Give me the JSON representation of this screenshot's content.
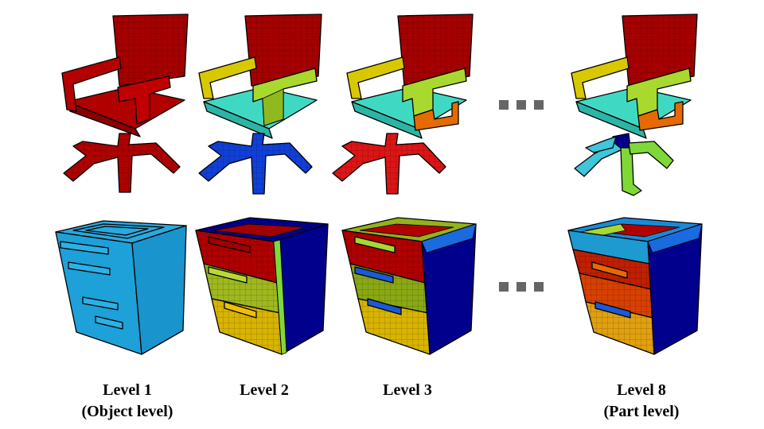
{
  "columns": [
    {
      "level": "Level 1",
      "sublabel": "(Object level)"
    },
    {
      "level": "Level 2",
      "sublabel": ""
    },
    {
      "level": "Level 3",
      "sublabel": ""
    },
    {
      "level": "Level 8",
      "sublabel": "(Part level)"
    }
  ],
  "rows": [
    {
      "object": "chair"
    },
    {
      "object": "cabinet"
    }
  ],
  "ellipsis_icon": "ellipsis-dots",
  "colors": {
    "dark_red": "#a00000",
    "red": "#dd1515",
    "cyan": "#3fd9c3",
    "blue": "#1040d8",
    "navy": "#00008c",
    "yellow": "#d8c800",
    "yellow_green": "#a9d82f",
    "lime": "#7fd837",
    "olive": "#94b21a",
    "orange": "#e66a00",
    "gold": "#e1b414",
    "sky": "#1ea0d8",
    "ellipsis": "#666666"
  }
}
